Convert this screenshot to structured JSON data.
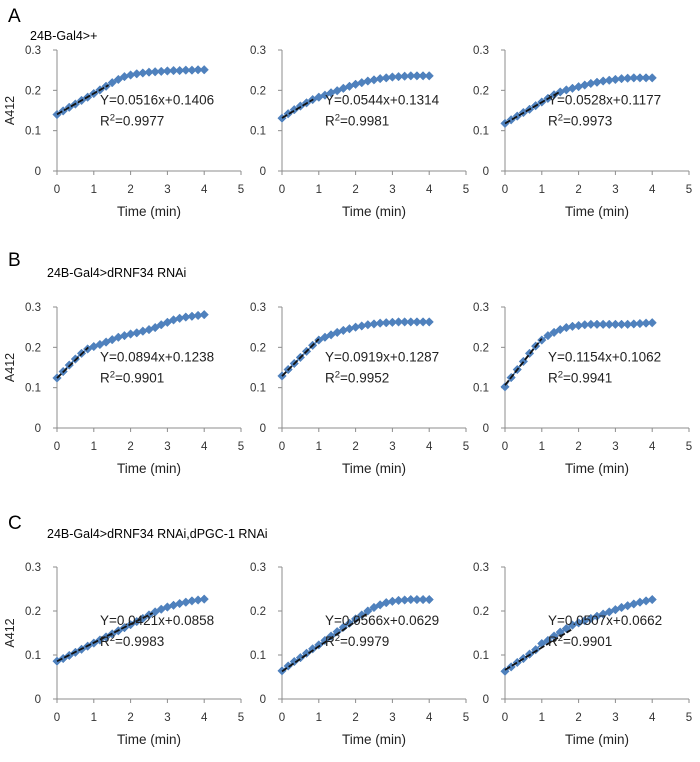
{
  "figure": {
    "rows": [
      {
        "letter": "A",
        "condition": "24B-Gal4>+"
      },
      {
        "letter": "B",
        "condition": "24B-Gal4>dRNF34 RNAi"
      },
      {
        "letter": "C",
        "condition": "24B-Gal4>dRNF34 RNAi,dPGC-1 RNAi"
      }
    ]
  },
  "colors": {
    "marker": "#4f81bd",
    "fit_line": "#111111",
    "axis": "#8c8c8c"
  },
  "chart_data": [
    {
      "type": "scatter",
      "row": 0,
      "col": 0,
      "xlabel": "Time (min)",
      "ylabel": "A412",
      "xlim": [
        0,
        5
      ],
      "ylim": [
        0,
        0.3
      ],
      "xticks": [
        "0",
        "1",
        "2",
        "3",
        "4",
        "5"
      ],
      "yticks": [
        "0",
        "0.1",
        "0.2",
        "0.3"
      ],
      "equation": "Y=0.0516x+0.1406",
      "r2_value": "=0.9977",
      "slope": 0.0516,
      "intercept": 0.1406,
      "fit_x": [
        0,
        1.4
      ],
      "x": [
        0,
        0.167,
        0.333,
        0.5,
        0.667,
        0.833,
        1,
        1.167,
        1.333,
        1.5,
        1.667,
        1.833,
        2,
        2.167,
        2.333,
        2.5,
        2.667,
        2.833,
        3,
        3.167,
        3.333,
        3.5,
        3.667,
        3.833,
        4
      ],
      "y": [
        0.14,
        0.149,
        0.158,
        0.166,
        0.175,
        0.183,
        0.192,
        0.201,
        0.21,
        0.219,
        0.227,
        0.234,
        0.238,
        0.241,
        0.243,
        0.245,
        0.246,
        0.247,
        0.248,
        0.249,
        0.249,
        0.25,
        0.25,
        0.251,
        0.251
      ]
    },
    {
      "type": "scatter",
      "row": 0,
      "col": 1,
      "xlabel": "Time (min)",
      "ylabel": "",
      "xlim": [
        0,
        5
      ],
      "ylim": [
        0,
        0.3
      ],
      "xticks": [
        "0",
        "1",
        "2",
        "3",
        "4",
        "5"
      ],
      "yticks": [
        "0",
        "0.1",
        "0.2",
        "0.3"
      ],
      "equation": "Y=0.0544x+0.1314",
      "r2_value": "=0.9981",
      "slope": 0.0544,
      "intercept": 0.1314,
      "fit_x": [
        0,
        0.85
      ],
      "x": [
        0,
        0.167,
        0.333,
        0.5,
        0.667,
        0.833,
        1,
        1.167,
        1.333,
        1.5,
        1.667,
        1.833,
        2,
        2.167,
        2.333,
        2.5,
        2.667,
        2.833,
        3,
        3.167,
        3.333,
        3.5,
        3.667,
        3.833,
        4
      ],
      "y": [
        0.131,
        0.142,
        0.152,
        0.161,
        0.169,
        0.177,
        0.183,
        0.188,
        0.194,
        0.199,
        0.205,
        0.21,
        0.215,
        0.219,
        0.223,
        0.226,
        0.229,
        0.231,
        0.233,
        0.234,
        0.235,
        0.236,
        0.236,
        0.236,
        0.236
      ]
    },
    {
      "type": "scatter",
      "row": 0,
      "col": 2,
      "xlabel": "Time (min)",
      "ylabel": "",
      "xlim": [
        0,
        5
      ],
      "ylim": [
        0,
        0.3
      ],
      "xticks": [
        "0",
        "1",
        "2",
        "3",
        "4",
        "5"
      ],
      "yticks": [
        "0",
        "0.1",
        "0.2",
        "0.3"
      ],
      "equation": "Y=0.0528x+0.1177",
      "r2_value": "=0.9973",
      "slope": 0.0528,
      "intercept": 0.1177,
      "fit_x": [
        0,
        1.5
      ],
      "x": [
        0,
        0.167,
        0.333,
        0.5,
        0.667,
        0.833,
        1,
        1.167,
        1.333,
        1.5,
        1.667,
        1.833,
        2,
        2.167,
        2.333,
        2.5,
        2.667,
        2.833,
        3,
        3.167,
        3.333,
        3.5,
        3.667,
        3.833,
        4
      ],
      "y": [
        0.118,
        0.127,
        0.136,
        0.145,
        0.153,
        0.162,
        0.171,
        0.18,
        0.189,
        0.196,
        0.201,
        0.205,
        0.209,
        0.213,
        0.217,
        0.22,
        0.223,
        0.225,
        0.227,
        0.229,
        0.23,
        0.231,
        0.231,
        0.231,
        0.231
      ]
    },
    {
      "type": "scatter",
      "row": 1,
      "col": 0,
      "xlabel": "Time (min)",
      "ylabel": "A412",
      "xlim": [
        0,
        5
      ],
      "ylim": [
        0,
        0.3
      ],
      "xticks": [
        "0",
        "1",
        "2",
        "3",
        "4",
        "5"
      ],
      "yticks": [
        "0",
        "0.1",
        "0.2",
        "0.3"
      ],
      "equation": "Y=0.0894x+0.1238",
      "r2_value": "=0.9901",
      "slope": 0.0894,
      "intercept": 0.1238,
      "fit_x": [
        0,
        0.85
      ],
      "x": [
        0,
        0.167,
        0.333,
        0.5,
        0.667,
        0.833,
        1,
        1.167,
        1.333,
        1.5,
        1.667,
        1.833,
        2,
        2.167,
        2.333,
        2.5,
        2.667,
        2.833,
        3,
        3.167,
        3.333,
        3.5,
        3.667,
        3.833,
        4
      ],
      "y": [
        0.124,
        0.14,
        0.156,
        0.171,
        0.185,
        0.196,
        0.202,
        0.207,
        0.213,
        0.219,
        0.225,
        0.229,
        0.233,
        0.236,
        0.24,
        0.244,
        0.249,
        0.256,
        0.262,
        0.268,
        0.272,
        0.275,
        0.277,
        0.279,
        0.281
      ]
    },
    {
      "type": "scatter",
      "row": 1,
      "col": 1,
      "xlabel": "Time (min)",
      "ylabel": "",
      "xlim": [
        0,
        5
      ],
      "ylim": [
        0,
        0.3
      ],
      "xticks": [
        "0",
        "1",
        "2",
        "3",
        "4",
        "5"
      ],
      "yticks": [
        "0",
        "0.1",
        "0.2",
        "0.3"
      ],
      "equation": "Y=0.0919x+0.1287",
      "r2_value": "=0.9952",
      "slope": 0.0919,
      "intercept": 0.1287,
      "fit_x": [
        0,
        1.0
      ],
      "x": [
        0,
        0.167,
        0.333,
        0.5,
        0.667,
        0.833,
        1,
        1.167,
        1.333,
        1.5,
        1.667,
        1.833,
        2,
        2.167,
        2.333,
        2.5,
        2.667,
        2.833,
        3,
        3.167,
        3.333,
        3.5,
        3.667,
        3.833,
        4
      ],
      "y": [
        0.129,
        0.145,
        0.16,
        0.175,
        0.19,
        0.205,
        0.218,
        0.225,
        0.231,
        0.237,
        0.242,
        0.246,
        0.25,
        0.253,
        0.256,
        0.258,
        0.26,
        0.261,
        0.262,
        0.263,
        0.263,
        0.263,
        0.263,
        0.263,
        0.263
      ]
    },
    {
      "type": "scatter",
      "row": 1,
      "col": 2,
      "xlabel": "Time (min)",
      "ylabel": "",
      "xlim": [
        0,
        5
      ],
      "ylim": [
        0,
        0.3
      ],
      "xticks": [
        "0",
        "1",
        "2",
        "3",
        "4",
        "5"
      ],
      "yticks": [
        "0",
        "0.1",
        "0.2",
        "0.3"
      ],
      "equation": "Y=0.1154x+0.1062",
      "r2_value": "=0.9941",
      "slope": 0.1154,
      "intercept": 0.1062,
      "fit_x": [
        0,
        1.0
      ],
      "x": [
        0,
        0.167,
        0.333,
        0.5,
        0.667,
        0.833,
        1,
        1.167,
        1.333,
        1.5,
        1.667,
        1.833,
        2,
        2.167,
        2.333,
        2.5,
        2.667,
        2.833,
        3,
        3.167,
        3.333,
        3.5,
        3.667,
        3.833,
        4
      ],
      "y": [
        0.102,
        0.125,
        0.145,
        0.165,
        0.185,
        0.203,
        0.218,
        0.229,
        0.237,
        0.244,
        0.249,
        0.252,
        0.254,
        0.256,
        0.257,
        0.257,
        0.257,
        0.257,
        0.257,
        0.257,
        0.257,
        0.258,
        0.259,
        0.26,
        0.261
      ]
    },
    {
      "type": "scatter",
      "row": 2,
      "col": 0,
      "xlabel": "Time (min)",
      "ylabel": "A412",
      "xlim": [
        0,
        5
      ],
      "ylim": [
        0,
        0.3
      ],
      "xticks": [
        "0",
        "1",
        "2",
        "3",
        "4",
        "5"
      ],
      "yticks": [
        "0",
        "0.1",
        "0.2",
        "0.3"
      ],
      "equation": "Y=0.0421x+0.0858",
      "r2_value": "=0.9983",
      "slope": 0.0421,
      "intercept": 0.0858,
      "fit_x": [
        0,
        2.6
      ],
      "x": [
        0,
        0.167,
        0.333,
        0.5,
        0.667,
        0.833,
        1,
        1.167,
        1.333,
        1.5,
        1.667,
        1.833,
        2,
        2.167,
        2.333,
        2.5,
        2.667,
        2.833,
        3,
        3.167,
        3.333,
        3.5,
        3.667,
        3.833,
        4
      ],
      "y": [
        0.086,
        0.092,
        0.099,
        0.106,
        0.113,
        0.12,
        0.127,
        0.134,
        0.141,
        0.148,
        0.155,
        0.162,
        0.169,
        0.176,
        0.183,
        0.191,
        0.198,
        0.204,
        0.209,
        0.213,
        0.217,
        0.22,
        0.223,
        0.225,
        0.227
      ]
    },
    {
      "type": "scatter",
      "row": 2,
      "col": 1,
      "xlabel": "Time (min)",
      "ylabel": "",
      "xlim": [
        0,
        5
      ],
      "ylim": [
        0,
        0.3
      ],
      "xticks": [
        "0",
        "1",
        "2",
        "3",
        "4",
        "5"
      ],
      "yticks": [
        "0",
        "0.1",
        "0.2",
        "0.3"
      ],
      "equation": "Y=0.0566x+0.0629",
      "r2_value": "=0.9979",
      "slope": 0.0566,
      "intercept": 0.0629,
      "fit_x": [
        0,
        2.3
      ],
      "x": [
        0,
        0.167,
        0.333,
        0.5,
        0.667,
        0.833,
        1,
        1.167,
        1.333,
        1.5,
        1.667,
        1.833,
        2,
        2.167,
        2.333,
        2.5,
        2.667,
        2.833,
        3,
        3.167,
        3.333,
        3.5,
        3.667,
        3.833,
        4
      ],
      "y": [
        0.064,
        0.075,
        0.085,
        0.094,
        0.104,
        0.114,
        0.123,
        0.133,
        0.143,
        0.153,
        0.163,
        0.172,
        0.182,
        0.191,
        0.2,
        0.208,
        0.214,
        0.219,
        0.222,
        0.224,
        0.225,
        0.226,
        0.226,
        0.226,
        0.226
      ]
    },
    {
      "type": "scatter",
      "row": 2,
      "col": 2,
      "xlabel": "Time (min)",
      "ylabel": "",
      "xlim": [
        0,
        5
      ],
      "ylim": [
        0,
        0.3
      ],
      "xticks": [
        "0",
        "1",
        "2",
        "3",
        "4",
        "5"
      ],
      "yticks": [
        "0",
        "0.1",
        "0.2",
        "0.3"
      ],
      "equation": "Y=0.0507x+0.0662",
      "r2_value": "=0.9901",
      "slope": 0.0507,
      "intercept": 0.0662,
      "fit_x": [
        0,
        1.8
      ],
      "x": [
        0,
        0.167,
        0.333,
        0.5,
        0.667,
        0.833,
        1,
        1.167,
        1.333,
        1.5,
        1.667,
        1.833,
        2,
        2.167,
        2.333,
        2.5,
        2.667,
        2.833,
        3,
        3.167,
        3.333,
        3.5,
        3.667,
        3.833,
        4
      ],
      "y": [
        0.063,
        0.073,
        0.083,
        0.092,
        0.102,
        0.112,
        0.126,
        0.133,
        0.143,
        0.152,
        0.16,
        0.168,
        0.173,
        0.178,
        0.183,
        0.188,
        0.193,
        0.198,
        0.203,
        0.208,
        0.212,
        0.216,
        0.22,
        0.223,
        0.226
      ]
    }
  ]
}
